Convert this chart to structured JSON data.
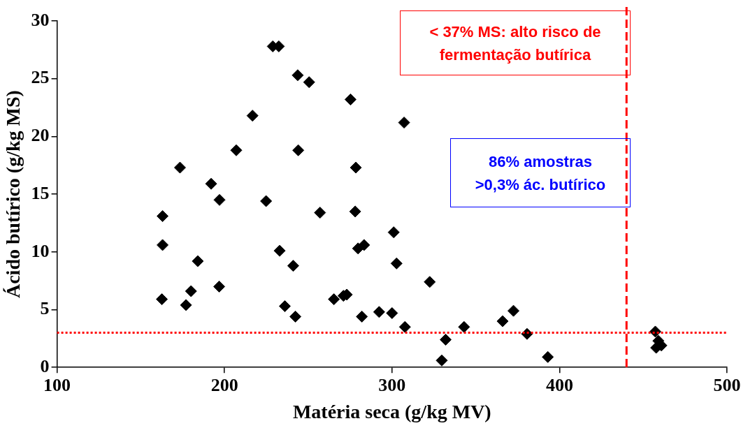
{
  "chart_data": {
    "type": "scatter",
    "xlabel": "Matéria seca (g/kg MV)",
    "ylabel": "Ácido butírico (g/kg MS)",
    "x": [
      162.6,
      163,
      163,
      173.4,
      177,
      180,
      184,
      192,
      197,
      196.8,
      207,
      216.7,
      224.8,
      228.8,
      232.4,
      232.9,
      236,
      241,
      242.3,
      243.7,
      244,
      250.5,
      257,
      265.3,
      271,
      273,
      275.2,
      278,
      278.4,
      279.7,
      283.3,
      282,
      292.3,
      300,
      301,
      302.7,
      307.2,
      307.7,
      322.5,
      329.7,
      332,
      343,
      366,
      372.5,
      380.6,
      393,
      457.2,
      457.7,
      459,
      460.8
    ],
    "series": [
      {
        "color": "#000000",
        "values": [
          5.9,
          13.1,
          10.6,
          17.3,
          5.4,
          6.6,
          9.2,
          15.9,
          14.5,
          7.0,
          18.8,
          21.8,
          14.4,
          27.8,
          27.8,
          10.1,
          5.3,
          8.8,
          4.4,
          25.3,
          18.8,
          24.7,
          13.4,
          5.9,
          6.2,
          6.3,
          23.2,
          13.5,
          17.3,
          10.3,
          10.6,
          4.4,
          4.8,
          4.7,
          11.7,
          9.0,
          21.2,
          3.5,
          7.4,
          0.6,
          2.4,
          3.5,
          4.0,
          4.9,
          2.9,
          0.9,
          3.1,
          1.7,
          2.3,
          1.9
        ]
      }
    ],
    "xlim": [
      100,
      500
    ],
    "xticks": [
      100,
      200,
      300,
      400,
      500
    ],
    "ylim": [
      0,
      30
    ],
    "yticks": [
      0,
      5,
      10,
      15,
      20,
      25,
      30
    ],
    "ref_lines": [
      {
        "axis": "y",
        "value": 3,
        "color": "#ff0000",
        "line_style": "dotted"
      },
      {
        "axis": "x",
        "value": 440,
        "color": "#ff0000",
        "line_style": "dashed"
      }
    ],
    "annotations": [
      "< 37% MS: alto risco de fermentação butírica",
      "86% amostras >0,3% ác. butírico"
    ],
    "marker": "diamond",
    "grid": false,
    "legend": false
  }
}
